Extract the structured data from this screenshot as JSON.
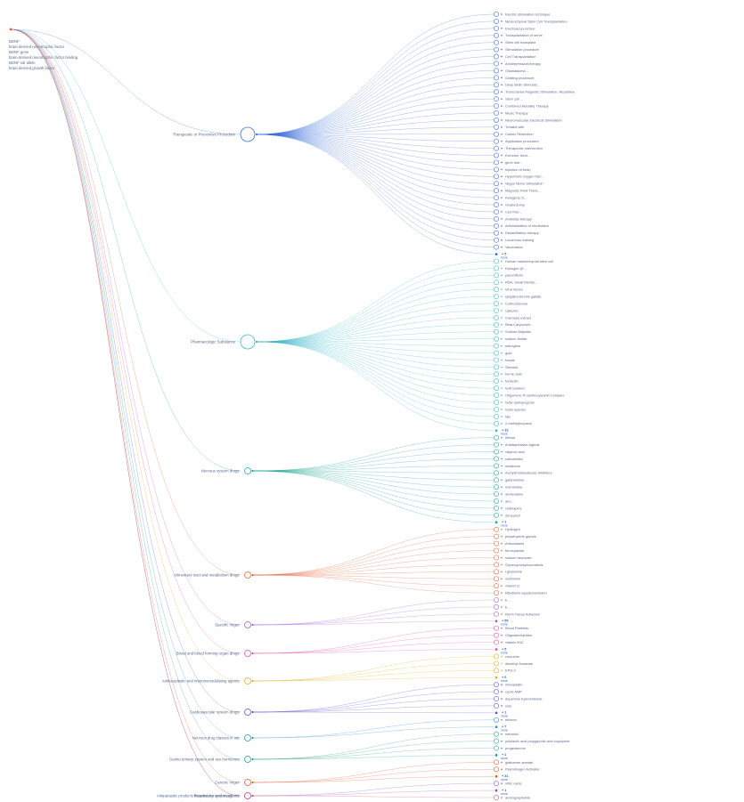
{
  "root": {
    "labels": [
      "BDNF",
      "brain-derived neurotrophic factor",
      "BDNF gene",
      "brain-derived neurotrophic factor binding",
      "BDNF val allele",
      "brain-derived growth factor"
    ]
  },
  "more_label": "more",
  "categories": [
    {
      "label": "Therapeutic or Preventive Procedure",
      "color": "#3b6fd8",
      "size": "large",
      "children": [
        "Electric stimulation technique",
        "Mesenchymal Stem Cell Transplantation",
        "Electroacupuncture",
        "Transplantation of nerve",
        "Stem cell transplant",
        "Stimulation procedure",
        "Cell Transplantation",
        "Antidepressant therapy",
        "Glioblastoma ...",
        "Grafting procedure",
        "Deep Brain Stimulati...",
        "Transcranial Magnetic Stimulation, Repetitive",
        "Stem cell ...",
        "Combined Modality Therapy",
        "Music Therapy",
        "Neuromuscular Electrical Stimulation",
        "Treated with",
        "Caloric Restriction",
        "Application procedure",
        "Therapeutic Intervention",
        "Exercise, Aero...",
        "gene ther...",
        "Injection of brain",
        "Hyperbaric oxygen ther...",
        "Vagus Nerve Stimulation",
        "Magnetic Field Thera...",
        "Ketogenic D...",
        "Ovariectomy",
        "Cell Ther...",
        "Antibiotic therapy",
        "Administration of medication",
        "Rehabilitation therapy",
        "Locomotor training",
        "Vaccination"
      ],
      "more": "+ 5"
    },
    {
      "label": "Pharmacologic Substance",
      "color": "#3cb8c7",
      "size": "large",
      "children": [
        "Human mesenchymal stem cell",
        "Estrogen (E...",
        "paeoniflorin",
        "RNA, Small Interfer...",
        "Viral Vector",
        "epigallocatechin gallate",
        "Corticosterone",
        "catechin",
        "rosemary extract",
        "Beta-Caryophyll...",
        "Sodium Butyrate",
        "sodium fonate",
        "estrogens",
        "gold",
        "fonate",
        "Steroids",
        "humic acid",
        "forskolin",
        "hydrocarbon",
        "Oligomeric Proanthocyanidin Complex",
        "radix ophiopogonis",
        "rubia species",
        "talc",
        "2-methylpropanol"
      ],
      "more": "+ 33"
    },
    {
      "label": "Nervous system drugs",
      "color": "#1fa58c",
      "size": "small",
      "children": [
        "lithium",
        "Antidepressive Agents",
        "valproic acid",
        "cannabidiol",
        "melatonin",
        "Acetylcholinesterase Inhibitors",
        "galantamine",
        "memantine",
        "andrenaline",
        "ano...",
        "clothiapine",
        "donepezil"
      ],
      "more": "+ 1"
    },
    {
      "label": "Alimentary tract and metabolism drugs",
      "color": "#e8643c",
      "size": "small",
      "children": [
        "Hydrogen",
        "polyethylene glycols",
        "Antioxidants",
        "ferrocyanide",
        "sodium benzoate",
        "Glycerophosphoinositols",
        "l-glutamine",
        "metformin",
        "vitamin D",
        "Riboflavin supplementation"
      ],
      "more": ""
    },
    {
      "label": "Specific ringer",
      "color": "#a060d8",
      "size": "small",
      "children": [
        "E...",
        "E...",
        "Fibrin Tissue Adhesive"
      ],
      "more": "+ 55"
    },
    {
      "label": "Blood and blood forming organ drugs",
      "color": "#e04fa8",
      "size": "small",
      "children": [
        "Blood Platelets",
        "Oligosaccharides",
        "vitamin B12"
      ],
      "more": "+ 5"
    },
    {
      "label": "Antineoplastic and immunomodulating agents",
      "color": "#e0b020",
      "size": "small",
      "children": [
        "curcumin",
        "dimethyl fumarate",
        "EPO-2"
      ],
      "more": "+ 6"
    },
    {
      "label": "Cardiovascular system drugs",
      "color": "#5a54d8",
      "size": "small",
      "children": [
        "simvastatin",
        "cyclic AMP",
        "dopamine hydrochloride",
        "ruta"
      ],
      "more": "+ 1"
    },
    {
      "label": "Nervous drug classes in vet",
      "color": "#2d8fcc",
      "size": "small",
      "children": [
        "ethanol"
      ],
      "more": "+ 7"
    },
    {
      "label": "Genito urinary system and sex hormones",
      "color": "#28a080",
      "size": "small",
      "children": [
        "estradiol",
        "polylactic acid-polyglycolic acid copolymer",
        "progesterone"
      ],
      "more": "+ 1"
    },
    {
      "label": "Generic ringer",
      "color": "#e05a2a",
      "size": "small",
      "children": [
        "glatiramer acetate",
        "Plasminogen Activator"
      ],
      "more": "+ 31"
    },
    {
      "label": "Respiratory system agents",
      "color": "#9050c8",
      "size": "small",
      "children": [
        "nitric oxide"
      ],
      "more": "+ 1"
    },
    {
      "label": "Antiparasitic products insecticides and repellents",
      "color": "#d8506a",
      "size": "small",
      "children": [
        "andrographolide"
      ],
      "more": ""
    }
  ]
}
